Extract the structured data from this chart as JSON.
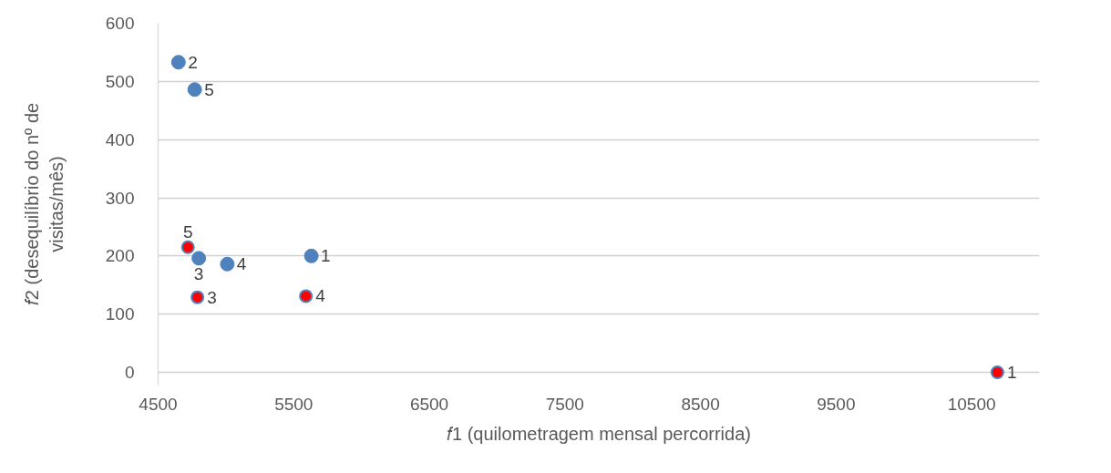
{
  "chart_data": {
    "type": "scatter",
    "xlabel": "𝑓1 (quilometragem mensal percorrida)",
    "ylabel": "𝑓2 (desequilíbrio do nº de visitas/mês)",
    "xlim": [
      4500,
      11000
    ],
    "xticks": [
      4500,
      5500,
      6500,
      7500,
      8500,
      9500,
      10500
    ],
    "ylim": [
      0,
      600
    ],
    "yticks": [
      0,
      100,
      200,
      300,
      400,
      500,
      600
    ],
    "grid": "y",
    "marker": "circle",
    "series": [
      {
        "color": "#4f81bd",
        "x": [
          5630,
          4650,
          4800,
          5010,
          4770
        ],
        "values": [
          200,
          533,
          196,
          186,
          486
        ]
      },
      {
        "color": "#ff0000",
        "x": [
          10690,
          4790,
          5590,
          4720
        ],
        "values": [
          0,
          129,
          131,
          215
        ]
      }
    ],
    "annotations": [
      {
        "text": "1",
        "x": 5630,
        "y": 200
      },
      {
        "text": "2",
        "x": 4650,
        "y": 533
      },
      {
        "text": "3",
        "x": 4800,
        "y": 196
      },
      {
        "text": "4",
        "x": 5010,
        "y": 186
      },
      {
        "text": "5",
        "x": 4770,
        "y": 486
      },
      {
        "text": "1",
        "x": 10690,
        "y": 0
      },
      {
        "text": "3",
        "x": 4790,
        "y": 129
      },
      {
        "text": "4",
        "x": 5590,
        "y": 131
      },
      {
        "text": "5",
        "x": 4720,
        "y": 215
      }
    ]
  }
}
